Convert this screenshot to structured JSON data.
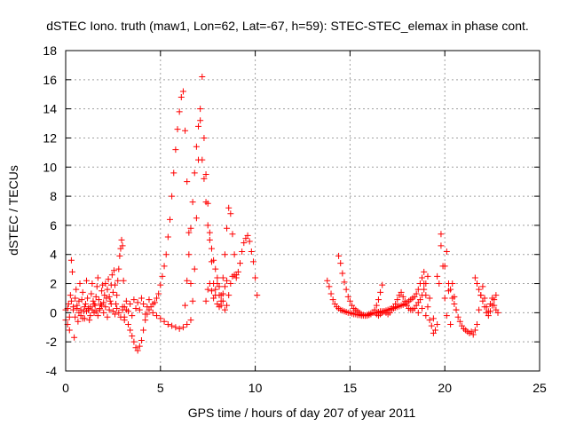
{
  "chart_data": {
    "type": "scatter",
    "title": "dSTEC Iono. truth (maw1, Lon=62, Lat=-67, h=59): STEC-STEC_elemax in phase cont.",
    "xlabel": "GPS time / hours of day 207 of year 2011",
    "ylabel": "dSTEC  / TECUs",
    "xlim": [
      0,
      25
    ],
    "ylim": [
      -4,
      18
    ],
    "xticks": [
      0,
      5,
      10,
      15,
      20,
      25
    ],
    "yticks": [
      -4,
      -2,
      0,
      2,
      4,
      6,
      8,
      10,
      12,
      14,
      16,
      18
    ],
    "grid": true,
    "marker": "plus",
    "color": "#ff0000",
    "series": [
      {
        "x": [
          0.0,
          0.1,
          0.15,
          0.2,
          0.25,
          0.3,
          0.35,
          0.4,
          0.45,
          0.5,
          0.55,
          0.6,
          0.65,
          0.7,
          0.75,
          0.8,
          0.85,
          0.9,
          0.95,
          1.0,
          1.05,
          1.1,
          1.15,
          1.2,
          1.25,
          1.3,
          1.35,
          1.4,
          1.45,
          1.5,
          1.55,
          1.6,
          1.65,
          1.7,
          1.75,
          1.8,
          1.85,
          1.9,
          1.95,
          2.0,
          2.05,
          2.1,
          2.15,
          2.2,
          2.25,
          2.3,
          2.35,
          2.4,
          2.45,
          2.5,
          2.55,
          2.6,
          2.65,
          2.7,
          2.75,
          2.8,
          2.85,
          2.9,
          2.95,
          3.0,
          3.05,
          3.1
        ],
        "y": [
          0.2,
          -0.8,
          0.6,
          -0.3,
          1.2,
          3.6,
          2.8,
          0.4,
          -1.7,
          1.0,
          1.6,
          0.3,
          -0.6,
          0.8,
          2.0,
          -0.2,
          0.9,
          1.4,
          0.1,
          -0.4,
          0.6,
          2.2,
          1.0,
          0.2,
          -0.5,
          0.4,
          1.3,
          2.0,
          0.8,
          0.0,
          0.5,
          1.1,
          1.8,
          2.4,
          0.9,
          0.2,
          0.6,
          1.5,
          1.9,
          0.7,
          1.2,
          2.0,
          1.0,
          1.6,
          2.3,
          1.1,
          0.8,
          1.9,
          2.6,
          1.4,
          2.9,
          1.9,
          0.6,
          1.2,
          2.2,
          3.0,
          3.9,
          4.4,
          5.0,
          4.6,
          2.2,
          0.4
        ]
      },
      {
        "x": [
          0.0,
          0.1,
          0.2,
          0.3,
          0.4,
          0.5,
          0.6,
          0.7,
          0.8,
          0.9,
          1.0,
          1.1,
          1.2,
          1.3,
          1.4,
          1.5,
          1.6,
          1.7,
          1.8,
          1.9,
          2.0,
          2.1,
          2.2,
          2.3,
          2.4,
          2.5,
          2.6,
          2.7,
          2.8,
          2.9,
          3.0,
          3.1,
          3.2,
          3.3,
          3.4,
          3.5,
          3.6,
          3.7,
          3.8,
          3.9,
          4.0,
          4.1,
          4.2,
          4.3,
          4.4
        ],
        "y": [
          -0.5,
          0.3,
          -1.2,
          0.8,
          0.2,
          -0.3,
          0.5,
          0.0,
          0.2,
          -0.4,
          0.4,
          0.1,
          0.3,
          -0.2,
          0.2,
          0.6,
          0.1,
          -0.2,
          0.3,
          0.5,
          0.0,
          0.4,
          -0.3,
          0.2,
          0.6,
          0.1,
          -0.1,
          0.3,
          0.0,
          -0.3,
          0.2,
          -0.5,
          0.8,
          0.1,
          0.6,
          -0.2,
          0.9,
          0.3,
          0.7,
          0.2,
          1.0,
          0.6,
          -0.1,
          0.4,
          0.9
        ]
      },
      {
        "x": [
          3.0,
          3.1,
          3.2,
          3.3,
          3.4,
          3.5,
          3.6,
          3.7,
          3.8,
          3.9,
          4.0,
          4.1,
          4.2,
          4.3,
          4.4,
          4.5,
          4.6,
          4.7,
          4.8,
          4.9,
          5.0,
          5.1,
          5.2,
          5.3,
          5.4,
          5.5,
          5.6,
          5.7,
          5.8,
          5.9,
          6.0,
          6.1,
          6.2,
          6.3,
          6.4,
          6.5,
          6.6
        ],
        "y": [
          0.4,
          -0.3,
          0.2,
          -0.8,
          -1.2,
          -1.6,
          -2.0,
          -2.4,
          -2.6,
          -2.3,
          -1.9,
          -1.2,
          -0.5,
          -0.1,
          0.2,
          0.4,
          0.6,
          0.7,
          1.0,
          1.3,
          1.9,
          2.5,
          3.2,
          4.0,
          5.2,
          6.4,
          8.0,
          9.6,
          11.2,
          12.6,
          13.8,
          14.8,
          15.2,
          12.5,
          9.0,
          5.5,
          2.0
        ]
      },
      {
        "x": [
          4.6,
          4.8,
          5.0,
          5.2,
          5.4,
          5.6,
          5.8,
          6.0,
          6.2,
          6.4,
          6.6,
          6.7,
          6.8,
          6.9,
          7.0,
          7.1,
          7.2,
          7.3,
          7.4,
          7.5,
          7.6,
          7.7,
          7.8,
          7.9,
          8.0,
          8.1,
          8.2,
          8.3,
          8.4,
          8.5
        ],
        "y": [
          0.0,
          -0.2,
          -0.4,
          -0.6,
          -0.8,
          -0.9,
          -1.0,
          -1.1,
          -1.0,
          -0.8,
          -0.5,
          0.8,
          3.0,
          6.5,
          10.5,
          14.0,
          16.2,
          12.0,
          9.5,
          7.5,
          5.5,
          3.5,
          2.0,
          1.2,
          0.6,
          0.4,
          0.8,
          1.3,
          1.8,
          2.2
        ]
      },
      {
        "x": [
          6.3,
          6.4,
          6.5,
          6.6,
          6.7,
          6.8,
          6.9,
          7.0,
          7.1,
          7.2,
          7.3,
          7.4,
          7.5,
          7.6,
          7.7,
          7.8,
          7.9,
          8.0,
          8.1,
          8.2,
          8.3
        ],
        "y": [
          0.5,
          2.2,
          4.0,
          5.8,
          7.6,
          9.6,
          11.4,
          12.8,
          13.2,
          10.5,
          9.2,
          7.6,
          6.0,
          5.0,
          4.4,
          3.6,
          3.0,
          2.4,
          1.8,
          1.2,
          0.8
        ]
      },
      {
        "x": [
          7.4,
          7.5,
          7.6,
          7.7,
          7.8,
          7.9,
          8.0,
          8.1,
          8.2,
          8.3,
          8.4,
          8.5,
          8.6,
          8.7,
          8.8,
          8.9,
          9.0
        ],
        "y": [
          0.8,
          1.6,
          2.0,
          1.5,
          1.0,
          1.6,
          2.0,
          1.2,
          0.5,
          2.4,
          4.0,
          5.8,
          7.2,
          6.8,
          5.4,
          4.0,
          2.6
        ]
      },
      {
        "x": [
          8.4,
          8.5,
          8.6,
          8.7,
          8.8,
          8.9,
          9.0,
          9.1,
          9.2,
          9.3,
          9.4,
          9.5,
          9.6,
          9.7,
          9.8,
          9.9,
          10.0,
          10.1
        ],
        "y": [
          0.2,
          0.5,
          1.2,
          2.0,
          2.5,
          2.6,
          2.4,
          2.8,
          3.4,
          4.2,
          4.8,
          5.1,
          5.3,
          4.9,
          4.2,
          3.5,
          2.4,
          1.2
        ]
      },
      {
        "x": [
          13.8,
          13.9,
          14.0,
          14.1,
          14.2,
          14.3,
          14.4,
          14.5,
          14.6,
          14.7,
          14.8,
          14.9,
          15.0,
          15.1,
          15.2,
          15.3,
          15.4,
          15.5,
          15.6,
          15.7,
          15.8,
          15.9,
          16.0,
          16.1,
          16.2,
          16.3,
          16.4,
          16.5,
          16.6,
          16.7,
          16.8,
          16.9,
          17.0,
          17.1,
          17.2,
          17.3,
          17.4,
          17.5,
          17.6,
          17.7,
          17.8,
          17.9,
          18.0,
          18.1,
          18.2,
          18.3,
          18.4,
          18.5,
          18.6,
          18.7,
          18.8,
          18.9
        ],
        "y": [
          2.2,
          1.8,
          1.3,
          0.9,
          0.6,
          0.4,
          0.3,
          0.2,
          0.15,
          0.1,
          0.05,
          0.0,
          0.0,
          -0.05,
          -0.1,
          -0.1,
          -0.15,
          -0.15,
          -0.2,
          -0.2,
          -0.2,
          -0.15,
          -0.1,
          -0.05,
          0.0,
          0.0,
          0.0,
          0.05,
          0.1,
          0.1,
          0.1,
          0.15,
          0.2,
          0.25,
          0.3,
          0.3,
          0.35,
          0.4,
          0.45,
          0.5,
          0.55,
          0.6,
          0.7,
          0.8,
          0.9,
          1.0,
          1.1,
          1.3,
          1.6,
          2.0,
          2.4,
          2.8
        ]
      },
      {
        "x": [
          14.4,
          14.5,
          14.6,
          14.7,
          14.8,
          14.9,
          15.0,
          15.1,
          15.2,
          15.3,
          15.4,
          15.5,
          15.6,
          15.7,
          15.8,
          15.9,
          16.0,
          16.1,
          16.2,
          16.3,
          16.4,
          16.5,
          16.6,
          16.7
        ],
        "y": [
          3.9,
          3.4,
          2.7,
          2.1,
          1.6,
          1.1,
          0.8,
          0.5,
          0.3,
          0.2,
          0.1,
          0.0,
          -0.1,
          -0.15,
          -0.2,
          -0.2,
          -0.15,
          -0.1,
          0.0,
          0.2,
          0.5,
          0.9,
          1.4,
          1.9
        ]
      },
      {
        "x": [
          16.4,
          16.5,
          16.6,
          16.7,
          16.8,
          16.9,
          17.0,
          17.1,
          17.2,
          17.3,
          17.4,
          17.5,
          17.6,
          17.7,
          17.8,
          17.9,
          18.0,
          18.1,
          18.2,
          18.3,
          18.4,
          18.5,
          18.6,
          18.7,
          18.8,
          18.9,
          19.0,
          19.1
        ],
        "y": [
          -0.1,
          -0.2,
          -0.1,
          0.0,
          0.1,
          0.0,
          -0.1,
          0.0,
          0.2,
          0.4,
          0.6,
          0.9,
          1.2,
          1.4,
          1.1,
          0.8,
          0.5,
          0.3,
          0.2,
          0.2,
          0.3,
          0.5,
          0.7,
          0.9,
          1.2,
          1.6,
          2.0,
          2.5
        ]
      },
      {
        "x": [
          18.9,
          19.0,
          19.1,
          19.2,
          19.3,
          19.4,
          19.5,
          19.6,
          19.7,
          19.8,
          19.9,
          20.0,
          20.1,
          20.2,
          20.3,
          20.4,
          20.5,
          20.6
        ],
        "y": [
          2.0,
          1.2,
          0.4,
          -0.5,
          -0.9,
          -1.4,
          -1.2,
          -0.8,
          2.0,
          5.4,
          3.2,
          1.0,
          -0.2,
          1.5,
          -0.8,
          2.0,
          1.1,
          0.2
        ]
      },
      {
        "x": [
          18.6,
          18.8,
          19.0,
          19.2,
          19.4,
          19.6,
          19.8,
          20.0,
          20.1,
          20.2,
          20.3,
          20.4,
          20.5,
          20.6,
          20.7,
          20.8,
          20.9,
          21.0,
          21.1,
          21.2,
          21.3,
          21.4,
          21.5,
          21.6,
          21.7,
          21.8,
          21.9,
          22.0,
          22.1,
          22.2,
          22.3,
          22.4,
          22.5,
          22.6,
          22.7,
          22.8
        ],
        "y": [
          0.0,
          0.3,
          -0.2,
          1.0,
          -0.4,
          2.5,
          4.6,
          3.2,
          4.2,
          2.0,
          1.6,
          1.0,
          0.6,
          0.2,
          -0.3,
          -0.6,
          -0.9,
          -1.1,
          -1.2,
          -1.3,
          -1.4,
          -1.3,
          -1.5,
          -1.2,
          -0.8,
          0.2,
          1.2,
          1.8,
          1.0,
          0.4,
          0.1,
          0.6,
          1.0,
          0.5,
          0.2,
          0.0
        ]
      },
      {
        "x": [
          21.6,
          21.7,
          21.8,
          21.9,
          22.0,
          22.1,
          22.2,
          22.3,
          22.4,
          22.5,
          22.6,
          22.7
        ],
        "y": [
          2.4,
          2.0,
          1.6,
          1.2,
          0.8,
          0.4,
          0.0,
          -0.2,
          0.1,
          0.5,
          0.9,
          1.2
        ]
      }
    ]
  }
}
